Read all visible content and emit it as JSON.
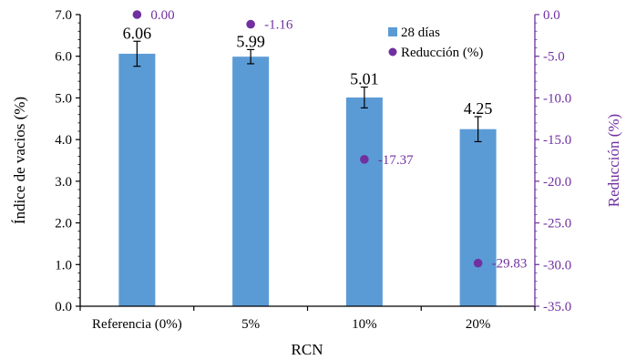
{
  "chart_data": {
    "type": "bar",
    "categories": [
      "Referencia (0%)",
      "5%",
      "10%",
      "20%"
    ],
    "series": [
      {
        "name": "28 días",
        "axis": "left",
        "type": "bar",
        "values": [
          6.06,
          5.99,
          5.01,
          4.25
        ],
        "data_labels": [
          "6.06",
          "5.99",
          "5.01",
          "4.25"
        ],
        "error": [
          0.3,
          0.17,
          0.25,
          0.3
        ],
        "color": "#5b9bd5"
      },
      {
        "name": "Reducción (%)",
        "axis": "right",
        "type": "scatter",
        "values": [
          0.0,
          -1.16,
          -17.37,
          -29.83
        ],
        "data_labels": [
          "0.00",
          "-1.16",
          "-17.37",
          "-29.83"
        ],
        "color": "#7030a0"
      }
    ],
    "xlabel": "RCN",
    "ylabel": "Índice de vacios (%)",
    "y2label": "Reducción (%)",
    "ylim": [
      0,
      7
    ],
    "y2lim": [
      -35,
      0
    ],
    "yticks": [
      "0.0",
      "1.0",
      "2.0",
      "3.0",
      "4.0",
      "5.0",
      "6.0",
      "7.0"
    ],
    "y2ticks": [
      "0.0",
      "-5.0",
      "-10.0",
      "-15.0",
      "-20.0",
      "-25.0",
      "-30.0",
      "-35.0"
    ],
    "grid": false,
    "legend_position": "top-right",
    "colors": {
      "left_axis": "#000000",
      "right_axis": "#7030a0"
    }
  }
}
